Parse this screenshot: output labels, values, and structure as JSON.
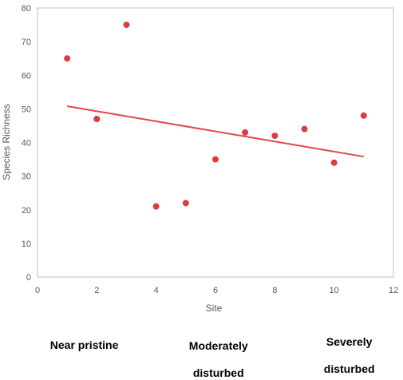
{
  "chart_data": {
    "type": "scatter",
    "xlabel": "Site",
    "ylabel": "Species Richness",
    "xlim": [
      0,
      12
    ],
    "ylim": [
      0,
      80
    ],
    "x_ticks": [
      0,
      2,
      4,
      6,
      8,
      10,
      12
    ],
    "y_ticks": [
      0,
      10,
      20,
      30,
      40,
      50,
      60,
      70,
      80
    ],
    "grid": false,
    "legend": "none",
    "series": [
      {
        "x": [
          1,
          2,
          3,
          4,
          5,
          6,
          7,
          8,
          9,
          10,
          11
        ],
        "y": [
          65,
          47,
          75,
          21,
          22,
          35,
          43,
          42,
          44,
          34,
          48
        ],
        "color": "#d93d3d"
      }
    ],
    "trendline": {
      "type": "linear",
      "from": [
        1,
        50.8
      ],
      "to": [
        11,
        35.8
      ],
      "color": "#e0474c"
    }
  },
  "region_labels": [
    {
      "line1": "Near pristine",
      "line2": ""
    },
    {
      "line1": "Moderately",
      "line2": "disturbed"
    },
    {
      "line1": "Severely",
      "line2": "disturbed"
    }
  ]
}
